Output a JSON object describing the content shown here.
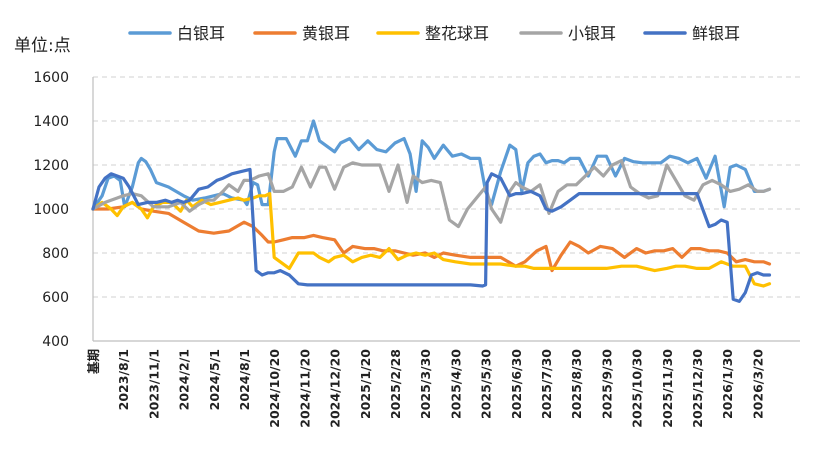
{
  "chart_data": {
    "type": "line",
    "title": "",
    "ylabel": "单位:点",
    "xlabel": "",
    "ylim": [
      400,
      1600
    ],
    "yticks": [
      400,
      600,
      800,
      1000,
      1200,
      1400,
      1600
    ],
    "grid": "horizontal-dashed",
    "legend_position": "top",
    "x_tick_labels": [
      "基期",
      "2023/8/1",
      "2023/11/1",
      "2024/2/1",
      "2024/5/1",
      "2024/8/1",
      "2024/10/20",
      "2024/11/20",
      "2024/12/20",
      "2025/1/20",
      "2025/2/28",
      "2025/3/30",
      "2025/4/30",
      "2025/5/30",
      "2025/6/30",
      "2025/7/30",
      "2025/8/30",
      "2025/9/30",
      "2025/10/30",
      "2025/11/30",
      "2025/12/30",
      "2026/1/30",
      "2026/3/20"
    ],
    "series": [
      {
        "name": "白银耳",
        "color": "#5b9bd5",
        "x": [
          0,
          0.3,
          0.5,
          0.7,
          0.9,
          1.05,
          1.3,
          1.5,
          1.6,
          1.75,
          1.9,
          2.1,
          2.5,
          3.0,
          3.3,
          3.7,
          4.0,
          4.3,
          4.6,
          5.0,
          5.1,
          5.3,
          5.45,
          5.6,
          5.8,
          6.0,
          6.1,
          6.4,
          6.7,
          6.9,
          7.1,
          7.3,
          7.5,
          7.7,
          8.0,
          8.2,
          8.5,
          8.8,
          9.1,
          9.4,
          9.7,
          10.0,
          10.3,
          10.5,
          10.7,
          10.9,
          11.1,
          11.3,
          11.6,
          11.9,
          12.2,
          12.5,
          12.8,
          13.0,
          13.2,
          13.5,
          13.8,
          14.0,
          14.2,
          14.4,
          14.6,
          14.8,
          15.0,
          15.2,
          15.4,
          15.6,
          15.8,
          16.1,
          16.4,
          16.7,
          17.0,
          17.3,
          17.6,
          17.9,
          18.2,
          18.5,
          18.8,
          19.1,
          19.4,
          19.7,
          20.0,
          20.3,
          20.6,
          20.9,
          21.1,
          21.3,
          21.6,
          21.9,
          22.2,
          22.4
        ],
        "values": [
          1000,
          1060,
          1140,
          1150,
          1130,
          1010,
          1100,
          1210,
          1230,
          1215,
          1180,
          1120,
          1100,
          1060,
          1040,
          1050,
          1060,
          1070,
          1050,
          1040,
          1020,
          1120,
          1110,
          1020,
          1020,
          1260,
          1320,
          1320,
          1240,
          1310,
          1310,
          1400,
          1310,
          1290,
          1260,
          1300,
          1320,
          1270,
          1310,
          1270,
          1260,
          1300,
          1320,
          1250,
          1080,
          1310,
          1280,
          1230,
          1290,
          1240,
          1250,
          1230,
          1230,
          1080,
          1020,
          1170,
          1290,
          1270,
          1080,
          1210,
          1240,
          1250,
          1210,
          1220,
          1220,
          1210,
          1230,
          1230,
          1150,
          1240,
          1240,
          1150,
          1230,
          1215,
          1210,
          1210,
          1210,
          1240,
          1230,
          1210,
          1230,
          1140,
          1240,
          1010,
          1190,
          1200,
          1180,
          1080,
          1080,
          1090
        ]
      },
      {
        "name": "黄银耳",
        "color": "#ed7d31",
        "x": [
          0,
          0.5,
          1.0,
          1.3,
          1.6,
          2.0,
          2.5,
          3.0,
          3.5,
          4.0,
          4.5,
          5.0,
          5.3,
          5.6,
          5.8,
          6.0,
          6.3,
          6.6,
          7.0,
          7.3,
          7.6,
          8.0,
          8.3,
          8.6,
          9.0,
          9.3,
          9.6,
          10.0,
          10.3,
          10.6,
          11.0,
          11.3,
          11.6,
          12.0,
          12.5,
          13.0,
          13.5,
          14.0,
          14.3,
          14.7,
          15.0,
          15.2,
          15.5,
          15.8,
          16.1,
          16.4,
          16.8,
          17.2,
          17.6,
          18.0,
          18.3,
          18.6,
          18.9,
          19.2,
          19.5,
          19.8,
          20.1,
          20.4,
          20.7,
          21.0,
          21.3,
          21.6,
          21.9,
          22.2,
          22.4
        ],
        "values": [
          1000,
          1000,
          1010,
          1030,
          1000,
          990,
          980,
          940,
          900,
          890,
          900,
          940,
          920,
          880,
          850,
          850,
          860,
          870,
          870,
          880,
          870,
          860,
          800,
          830,
          820,
          820,
          810,
          810,
          800,
          790,
          800,
          780,
          800,
          790,
          780,
          780,
          780,
          740,
          760,
          810,
          830,
          720,
          790,
          850,
          830,
          800,
          830,
          820,
          780,
          820,
          800,
          810,
          810,
          820,
          780,
          820,
          820,
          810,
          810,
          800,
          760,
          770,
          760,
          760,
          750
        ]
      },
      {
        "name": "整花球耳",
        "color": "#ffc000",
        "x": [
          0,
          0.3,
          0.6,
          0.8,
          1.0,
          1.3,
          1.6,
          1.8,
          2.0,
          2.3,
          2.6,
          2.9,
          3.1,
          3.3,
          3.6,
          3.9,
          4.2,
          4.5,
          4.8,
          5.0,
          5.3,
          5.5,
          5.7,
          5.85,
          6.0,
          6.2,
          6.5,
          6.8,
          7.0,
          7.3,
          7.5,
          7.8,
          8.0,
          8.3,
          8.6,
          8.9,
          9.2,
          9.5,
          9.8,
          10.1,
          10.4,
          10.7,
          11.0,
          11.3,
          11.6,
          12.0,
          12.5,
          13.0,
          13.5,
          14.0,
          14.3,
          14.6,
          15.0,
          15.5,
          16.0,
          16.5,
          17.0,
          17.5,
          18.0,
          18.3,
          18.6,
          19.0,
          19.3,
          19.6,
          20.0,
          20.4,
          20.8,
          21.2,
          21.6,
          21.9,
          22.2,
          22.4
        ],
        "values": [
          1000,
          1030,
          1000,
          970,
          1010,
          1030,
          1000,
          960,
          1010,
          1030,
          1030,
          990,
          1040,
          1010,
          1040,
          1020,
          1030,
          1040,
          1050,
          1040,
          1050,
          1060,
          1060,
          1070,
          780,
          760,
          730,
          800,
          800,
          800,
          780,
          760,
          780,
          790,
          760,
          780,
          790,
          780,
          820,
          770,
          790,
          800,
          790,
          800,
          770,
          760,
          750,
          750,
          750,
          740,
          740,
          730,
          730,
          730,
          730,
          730,
          730,
          740,
          740,
          730,
          720,
          730,
          740,
          740,
          730,
          730,
          760,
          740,
          740,
          660,
          650,
          660
        ]
      },
      {
        "name": "小银耳",
        "color": "#a5a5a5",
        "x": [
          0,
          0.4,
          0.8,
          1.0,
          1.3,
          1.6,
          2.0,
          2.5,
          2.9,
          3.2,
          3.5,
          3.8,
          4.0,
          4.3,
          4.5,
          4.8,
          5.0,
          5.2,
          5.5,
          5.8,
          6.0,
          6.3,
          6.6,
          6.9,
          7.2,
          7.5,
          7.7,
          8.0,
          8.3,
          8.6,
          8.9,
          9.2,
          9.5,
          9.8,
          10.1,
          10.4,
          10.6,
          10.9,
          11.2,
          11.5,
          11.8,
          12.1,
          12.4,
          12.7,
          13.0,
          13.2,
          13.5,
          13.8,
          14.0,
          14.2,
          14.5,
          14.8,
          15.1,
          15.4,
          15.7,
          16.0,
          16.3,
          16.6,
          16.9,
          17.2,
          17.5,
          17.8,
          18.1,
          18.4,
          18.7,
          19.0,
          19.3,
          19.6,
          19.9,
          20.2,
          20.5,
          20.8,
          21.1,
          21.4,
          21.7,
          22.0,
          22.2,
          22.4
        ],
        "values": [
          1000,
          1030,
          1050,
          1060,
          1070,
          1060,
          1010,
          1010,
          1030,
          990,
          1020,
          1040,
          1040,
          1080,
          1110,
          1080,
          1130,
          1130,
          1150,
          1160,
          1080,
          1080,
          1100,
          1190,
          1100,
          1190,
          1190,
          1090,
          1190,
          1210,
          1200,
          1200,
          1200,
          1080,
          1200,
          1030,
          1150,
          1120,
          1130,
          1120,
          950,
          920,
          1000,
          1050,
          1100,
          1000,
          940,
          1080,
          1120,
          1100,
          1080,
          1110,
          980,
          1080,
          1110,
          1110,
          1150,
          1190,
          1150,
          1200,
          1220,
          1100,
          1070,
          1050,
          1060,
          1200,
          1130,
          1060,
          1040,
          1110,
          1130,
          1110,
          1080,
          1090,
          1110,
          1080,
          1080,
          1090
        ]
      },
      {
        "name": "鲜银耳",
        "color": "#4472c4",
        "x": [
          0,
          0.2,
          0.4,
          0.6,
          0.8,
          1.0,
          1.2,
          1.5,
          1.8,
          2.1,
          2.4,
          2.6,
          2.8,
          3.0,
          3.2,
          3.5,
          3.8,
          4.1,
          4.3,
          4.6,
          4.9,
          5.2,
          5.4,
          5.6,
          5.8,
          6.0,
          6.2,
          6.5,
          6.8,
          7.1,
          7.4,
          7.7,
          8.0,
          8.5,
          9.0,
          9.5,
          10.0,
          10.5,
          11.0,
          11.5,
          12.0,
          12.5,
          12.9,
          13.0,
          13.05,
          13.2,
          13.5,
          13.8,
          14.0,
          14.2,
          14.5,
          14.8,
          15.0,
          15.2,
          15.5,
          15.8,
          16.1,
          16.5,
          17.0,
          17.5,
          18.0,
          18.5,
          19.0,
          19.5,
          20.0,
          20.4,
          20.6,
          20.8,
          21.0,
          21.2,
          21.4,
          21.6,
          21.8,
          22.0,
          22.2,
          22.4
        ],
        "values": [
          1000,
          1100,
          1140,
          1160,
          1150,
          1140,
          1100,
          1020,
          1030,
          1030,
          1040,
          1030,
          1040,
          1030,
          1040,
          1090,
          1100,
          1130,
          1140,
          1160,
          1170,
          1180,
          720,
          700,
          710,
          710,
          720,
          700,
          660,
          655,
          655,
          655,
          655,
          655,
          655,
          655,
          655,
          655,
          655,
          655,
          655,
          655,
          650,
          655,
          1120,
          1160,
          1140,
          1060,
          1070,
          1070,
          1080,
          1060,
          1000,
          990,
          1010,
          1040,
          1070,
          1070,
          1070,
          1070,
          1070,
          1070,
          1070,
          1070,
          1070,
          920,
          930,
          950,
          940,
          590,
          580,
          620,
          700,
          710,
          700,
          700
        ]
      }
    ]
  }
}
